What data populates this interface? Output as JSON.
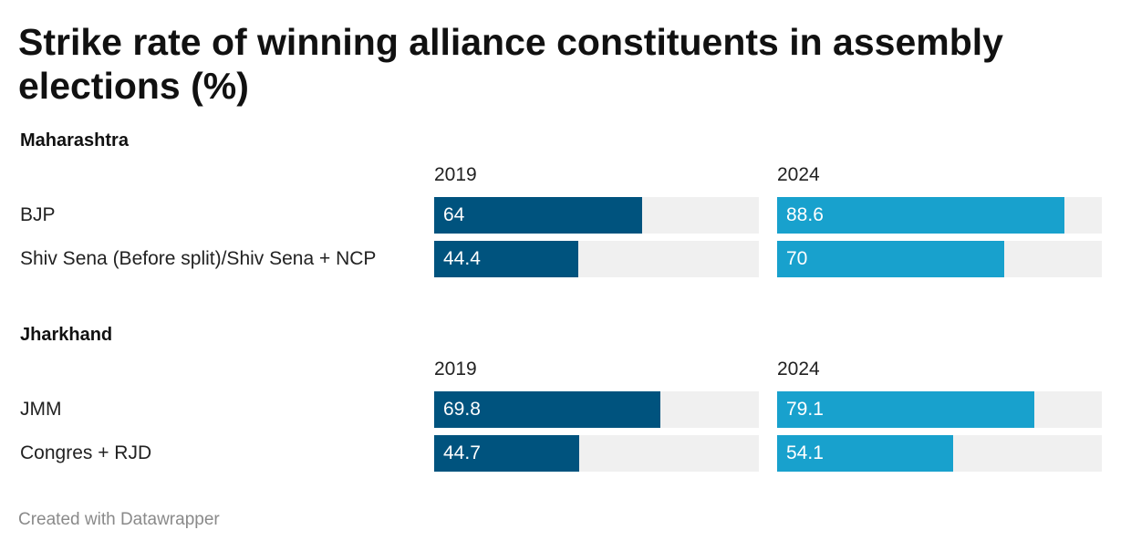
{
  "title": "Strike rate of winning alliance constituents in assembly elections (%)",
  "credit": "Created with Datawrapper",
  "colors": {
    "y2019": "#00537e",
    "y2024": "#18a1cd",
    "track": "#f0f0f0"
  },
  "chart_data": {
    "type": "bar",
    "columns": [
      "2019",
      "2024"
    ],
    "scale_max": 100,
    "groups": [
      {
        "name": "Maharashtra",
        "rows": [
          {
            "label": "BJP",
            "values": [
              64,
              88.6
            ],
            "labels": [
              "64",
              "88.6"
            ]
          },
          {
            "label": "Shiv Sena (Before split)/Shiv Sena + NCP",
            "values": [
              44.4,
              70
            ],
            "labels": [
              "44.4",
              "70"
            ]
          }
        ]
      },
      {
        "name": "Jharkhand",
        "rows": [
          {
            "label": "JMM",
            "values": [
              69.8,
              79.1
            ],
            "labels": [
              "69.8",
              "79.1"
            ]
          },
          {
            "label": "Congres + RJD",
            "values": [
              44.7,
              54.1
            ],
            "labels": [
              "44.7",
              "54.1"
            ]
          }
        ]
      }
    ]
  }
}
